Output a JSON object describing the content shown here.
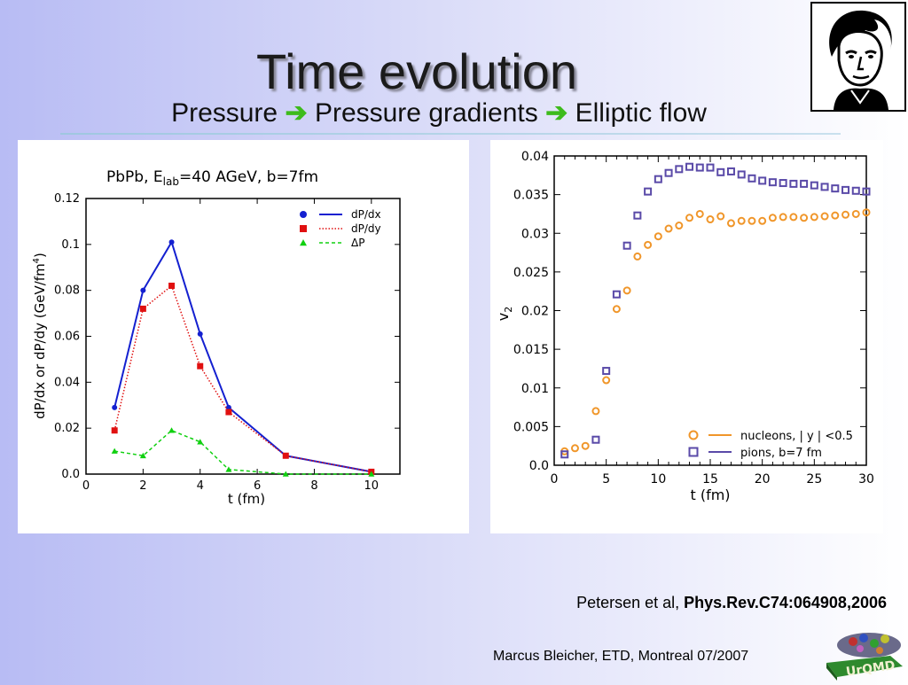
{
  "slide": {
    "title": "Time evolution",
    "subtitle": {
      "part1": "Pressure",
      "part2": "Pressure gradients",
      "part3": "Elliptic flow"
    },
    "citation": {
      "authors": "Petersen et al, ",
      "journal": "Phys.Rev.C74:064908,2006"
    },
    "footer": "Marcus Bleicher, ETD, Montreal 07/2007",
    "logo_text": "UrQMD",
    "colors": {
      "arrow": "#3dbb1c"
    }
  },
  "chart_data": [
    {
      "type": "line",
      "title": {
        "prefix": "PbPb, E",
        "sub": "lab",
        "suffix": "=40 AGeV, b=7fm"
      },
      "xlabel": "t (fm)",
      "ylabel": "dP/dx or dP/dy (GeV/fm",
      "ylabel_sup": "4",
      "ylabel_end": ")",
      "xlim": [
        0,
        11
      ],
      "ylim": [
        0,
        0.12
      ],
      "xticks": [
        "0",
        "2",
        "4",
        "6",
        "8",
        "10"
      ],
      "yticks": [
        "0.0",
        "0.02",
        "0.04",
        "0.06",
        "0.08",
        "0.1",
        "0.12"
      ],
      "legend_position": "top-right",
      "series": [
        {
          "name": "dP/dx",
          "color": "#1420d0",
          "marker": "circle",
          "line": "solid",
          "x": [
            1,
            2,
            3,
            4,
            5,
            7,
            10
          ],
          "y": [
            0.029,
            0.08,
            0.101,
            0.061,
            0.029,
            0.008,
            0.001
          ]
        },
        {
          "name": "dP/dy",
          "color": "#e01010",
          "marker": "square",
          "line": "dotted",
          "x": [
            1,
            2,
            3,
            4,
            5,
            7,
            10
          ],
          "y": [
            0.019,
            0.072,
            0.082,
            0.047,
            0.027,
            0.008,
            0.001
          ]
        },
        {
          "name": "ΔP",
          "color": "#10d010",
          "marker": "triangle",
          "line": "dashed",
          "x": [
            1,
            2,
            3,
            4,
            5,
            7,
            10
          ],
          "y": [
            0.01,
            0.008,
            0.019,
            0.014,
            0.002,
            0.0,
            0.0
          ]
        }
      ]
    },
    {
      "type": "scatter",
      "xlabel": "t (fm)",
      "ylabel": "v",
      "ylabel_sub": "2",
      "xlim": [
        0,
        30
      ],
      "ylim": [
        0,
        0.04
      ],
      "xticks": [
        "0",
        "5",
        "10",
        "15",
        "20",
        "25",
        "30"
      ],
      "yticks": [
        "0.0",
        "0.005",
        "0.01",
        "0.015",
        "0.02",
        "0.025",
        "0.03",
        "0.035",
        "0.04"
      ],
      "legend_position": "bottom-right",
      "series": [
        {
          "name": "nucleons, | y | <0.5",
          "color": "#f0962a",
          "marker": "circle",
          "x": [
            1,
            2,
            3,
            4,
            5,
            6,
            7,
            8,
            9,
            10,
            11,
            12,
            13,
            14,
            15,
            16,
            17,
            18,
            19,
            20,
            21,
            22,
            23,
            24,
            25,
            26,
            27,
            28,
            29,
            30
          ],
          "y": [
            0.0018,
            0.0022,
            0.0025,
            0.007,
            0.011,
            0.0202,
            0.0226,
            0.027,
            0.0285,
            0.0296,
            0.0306,
            0.031,
            0.032,
            0.0325,
            0.0318,
            0.0322,
            0.0313,
            0.0316,
            0.0316,
            0.0316,
            0.032,
            0.0321,
            0.0321,
            0.032,
            0.0321,
            0.0322,
            0.0323,
            0.0324,
            0.0325,
            0.0327
          ]
        },
        {
          "name": "pions, b=7 fm",
          "color": "#5a4aa8",
          "marker": "square",
          "x": [
            1,
            4,
            5,
            6,
            7,
            8,
            9,
            10,
            11,
            12,
            13,
            14,
            15,
            16,
            17,
            18,
            19,
            20,
            21,
            22,
            23,
            24,
            25,
            26,
            27,
            28,
            29,
            30
          ],
          "y": [
            0.0014,
            0.0033,
            0.0122,
            0.0221,
            0.0284,
            0.0323,
            0.0354,
            0.037,
            0.0378,
            0.0383,
            0.0386,
            0.0385,
            0.0385,
            0.0379,
            0.038,
            0.0376,
            0.0371,
            0.0368,
            0.0366,
            0.0365,
            0.0364,
            0.0364,
            0.0362,
            0.036,
            0.0358,
            0.0356,
            0.0355,
            0.0354
          ]
        }
      ]
    }
  ]
}
